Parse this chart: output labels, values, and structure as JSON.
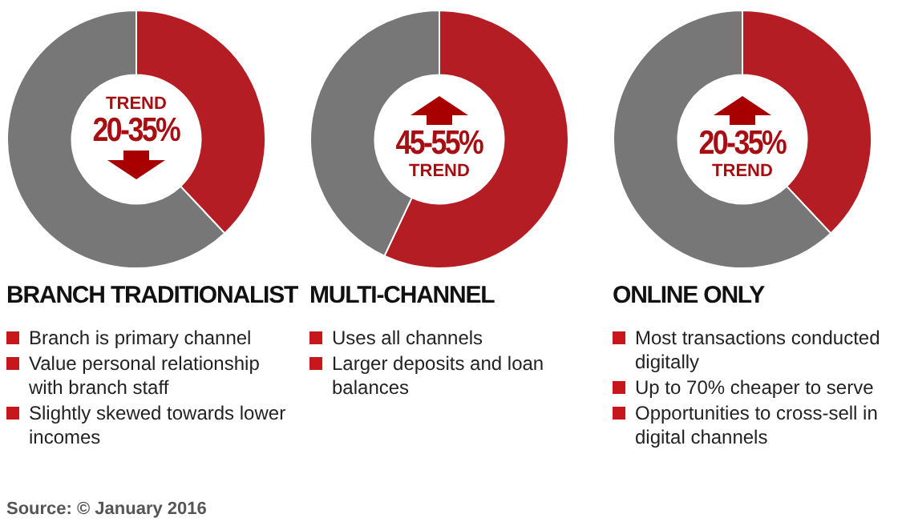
{
  "chart_data": [
    {
      "type": "donut",
      "title": "BRANCH TRADITIONALIST",
      "categories": [
        null,
        null
      ],
      "values": [
        38,
        62
      ],
      "colors": [
        "#b41d23",
        "#777777"
      ],
      "legend": false,
      "annotations": [
        "TREND",
        "20-35%",
        "Branch is primary channel",
        "Value personal relationship with branch staff",
        "Slightly skewed towards lower incomes"
      ]
    },
    {
      "type": "donut",
      "title": "MULTI-CHANNEL",
      "categories": [
        null,
        null
      ],
      "values": [
        57,
        43
      ],
      "colors": [
        "#b41d23",
        "#777777"
      ],
      "legend": false,
      "annotations": [
        "45-55%",
        "TREND",
        "Uses all channels",
        "Larger deposits and loan balances"
      ]
    },
    {
      "type": "donut",
      "title": "ONLINE ONLY",
      "categories": [
        null,
        null
      ],
      "values": [
        38,
        62
      ],
      "colors": [
        "#b41d23",
        "#777777"
      ],
      "legend": false,
      "annotations": [
        "20-35%",
        "TREND",
        "Most transactions conducted digitally",
        "Up to 70% cheaper to serve",
        "Opportunities to cross-sell in digital channels"
      ]
    },
    {
      "type": "other",
      "annotations": [
        "Source: © January 2016"
      ]
    }
  ]
}
